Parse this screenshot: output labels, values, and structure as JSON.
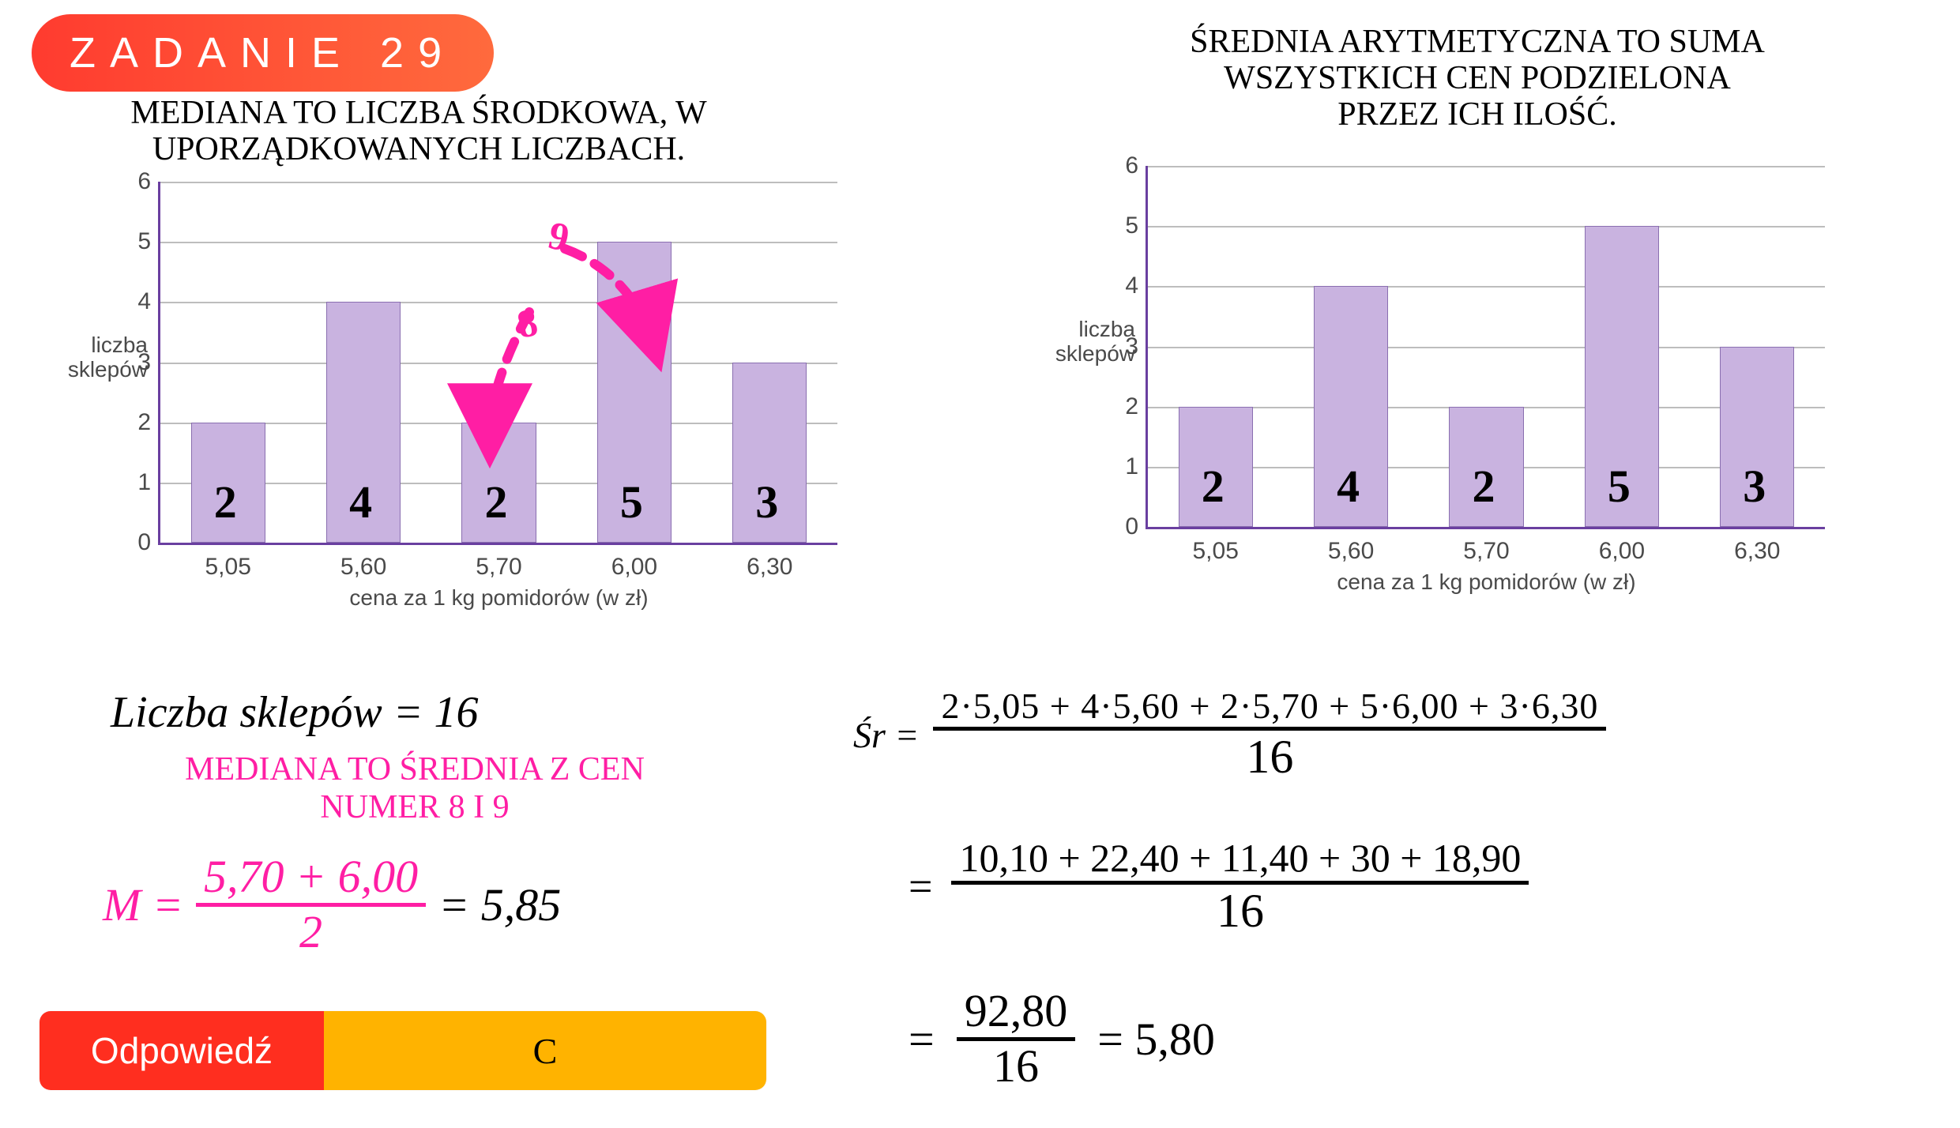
{
  "badge": {
    "text": "ZADANIE 29",
    "bg_from": "#ff3b2f",
    "bg_to": "#ff6a3d",
    "color": "#ffffff",
    "fontsize": 54
  },
  "heading_left": {
    "line1": "MEDIANA TO LICZBA ŚRODKOWA, W",
    "line2": "UPORZĄDKOWANYCH LICZBACH.",
    "fontsize": 42,
    "color": "#000000"
  },
  "heading_right": {
    "line1": "ŚREDNIA ARYTMETYCZNA TO SUMA",
    "line2": "WSZYSTKICH CEN PODZIELONA",
    "line3": "PRZEZ ICH ILOŚĆ.",
    "fontsize": 42,
    "color": "#000000"
  },
  "chart": {
    "type": "bar",
    "categories": [
      "5,05",
      "5,60",
      "5,70",
      "6,00",
      "6,30"
    ],
    "values": [
      2,
      4,
      2,
      5,
      3
    ],
    "bar_color": "#c9b3e0",
    "bar_border": "#8a6fb0",
    "axis_color": "#6a3fa0",
    "grid_color": "#bdbdbd",
    "background": "#ffffff",
    "ylim": [
      0,
      6
    ],
    "yticks": [
      0,
      1,
      2,
      3,
      4,
      5,
      6
    ],
    "ylabel_line1": "liczba",
    "ylabel_line2": "sklepów",
    "xlabel": "cena za 1 kg pomidorów (w zł)",
    "bar_width_ratio": 0.55,
    "tick_fontsize": 30,
    "label_fontsize": 28,
    "hand_labels": [
      "2",
      "4",
      "2",
      "5",
      "3"
    ],
    "hand_label_color": "#000000",
    "hand_label_fontsize": 58
  },
  "arrows": {
    "color": "#ff1ea4",
    "labels": [
      "9",
      "8"
    ],
    "label_fontsize": 50
  },
  "work_left": {
    "line_shops": "Liczba sklepów = 16",
    "line_shops_fontsize": 56,
    "pink_line1": "MEDIANA TO ŚREDNIA Z CEN",
    "pink_line2": "NUMER 8 I 9",
    "pink_heading_fontsize": 42,
    "median_M": "M =",
    "median_num": "5,70 + 6,00",
    "median_den": "2",
    "median_eq": "= 5,85",
    "median_fontsize": 58,
    "median_color": "#ff1ea4",
    "median_result_color": "#000000"
  },
  "work_right": {
    "sr_label": "Śr =",
    "line1_num": "2·5,05 + 4·5,60 + 2·5,70 + 5·6,00 + 3·6,30",
    "line1_den": "16",
    "line2_num": "10,10 + 22,40 + 11,40 + 30 + 18,90",
    "line2_den": "16",
    "line3_num": "92,80",
    "line3_den": "16",
    "line3_eq": "= 5,80",
    "fontsize_top": 46,
    "fontsize_rest": 54,
    "color": "#000000"
  },
  "answer": {
    "label": "Odpowiedź",
    "value": "C",
    "left_bg": "#ff2e1f",
    "right_bg": "#ffb300",
    "fontsize": 46
  }
}
